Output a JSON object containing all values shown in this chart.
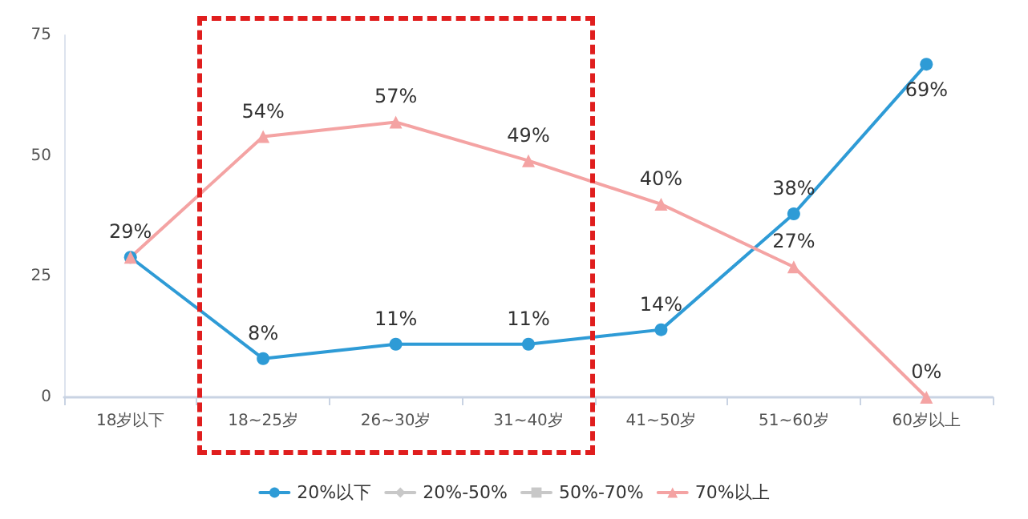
{
  "chart_data": {
    "type": "line",
    "categories": [
      "18岁以下",
      "18~25岁",
      "26~30岁",
      "31~40岁",
      "41~50岁",
      "51~60岁",
      "60岁以上"
    ],
    "series": [
      {
        "name": "20%以下",
        "color": "#2e9bd6",
        "marker": "circle",
        "values": [
          29,
          8,
          11,
          11,
          14,
          38,
          69
        ],
        "value_labels": [
          "29%",
          "8%",
          "11%",
          "11%",
          "14%",
          "38%",
          "69%"
        ]
      },
      {
        "name": "20%-50%",
        "color": "#c8c8c8",
        "marker": "diamond",
        "values": [
          null,
          null,
          null,
          null,
          null,
          null,
          null
        ]
      },
      {
        "name": "50%-70%",
        "color": "#c8c8c8",
        "marker": "square",
        "values": [
          null,
          null,
          null,
          null,
          null,
          null,
          null
        ]
      },
      {
        "name": "70%以上",
        "color": "#f4a3a3",
        "marker": "triangle",
        "values": [
          29,
          54,
          57,
          49,
          40,
          27,
          0
        ],
        "value_labels": [
          null,
          "54%",
          "57%",
          "49%",
          "40%",
          "27%",
          "0%"
        ]
      }
    ],
    "ylim": [
      0,
      75
    ],
    "yticks": [
      0,
      25,
      50,
      75
    ],
    "grid": false,
    "legend": "bottom",
    "line_style": "solid"
  }
}
